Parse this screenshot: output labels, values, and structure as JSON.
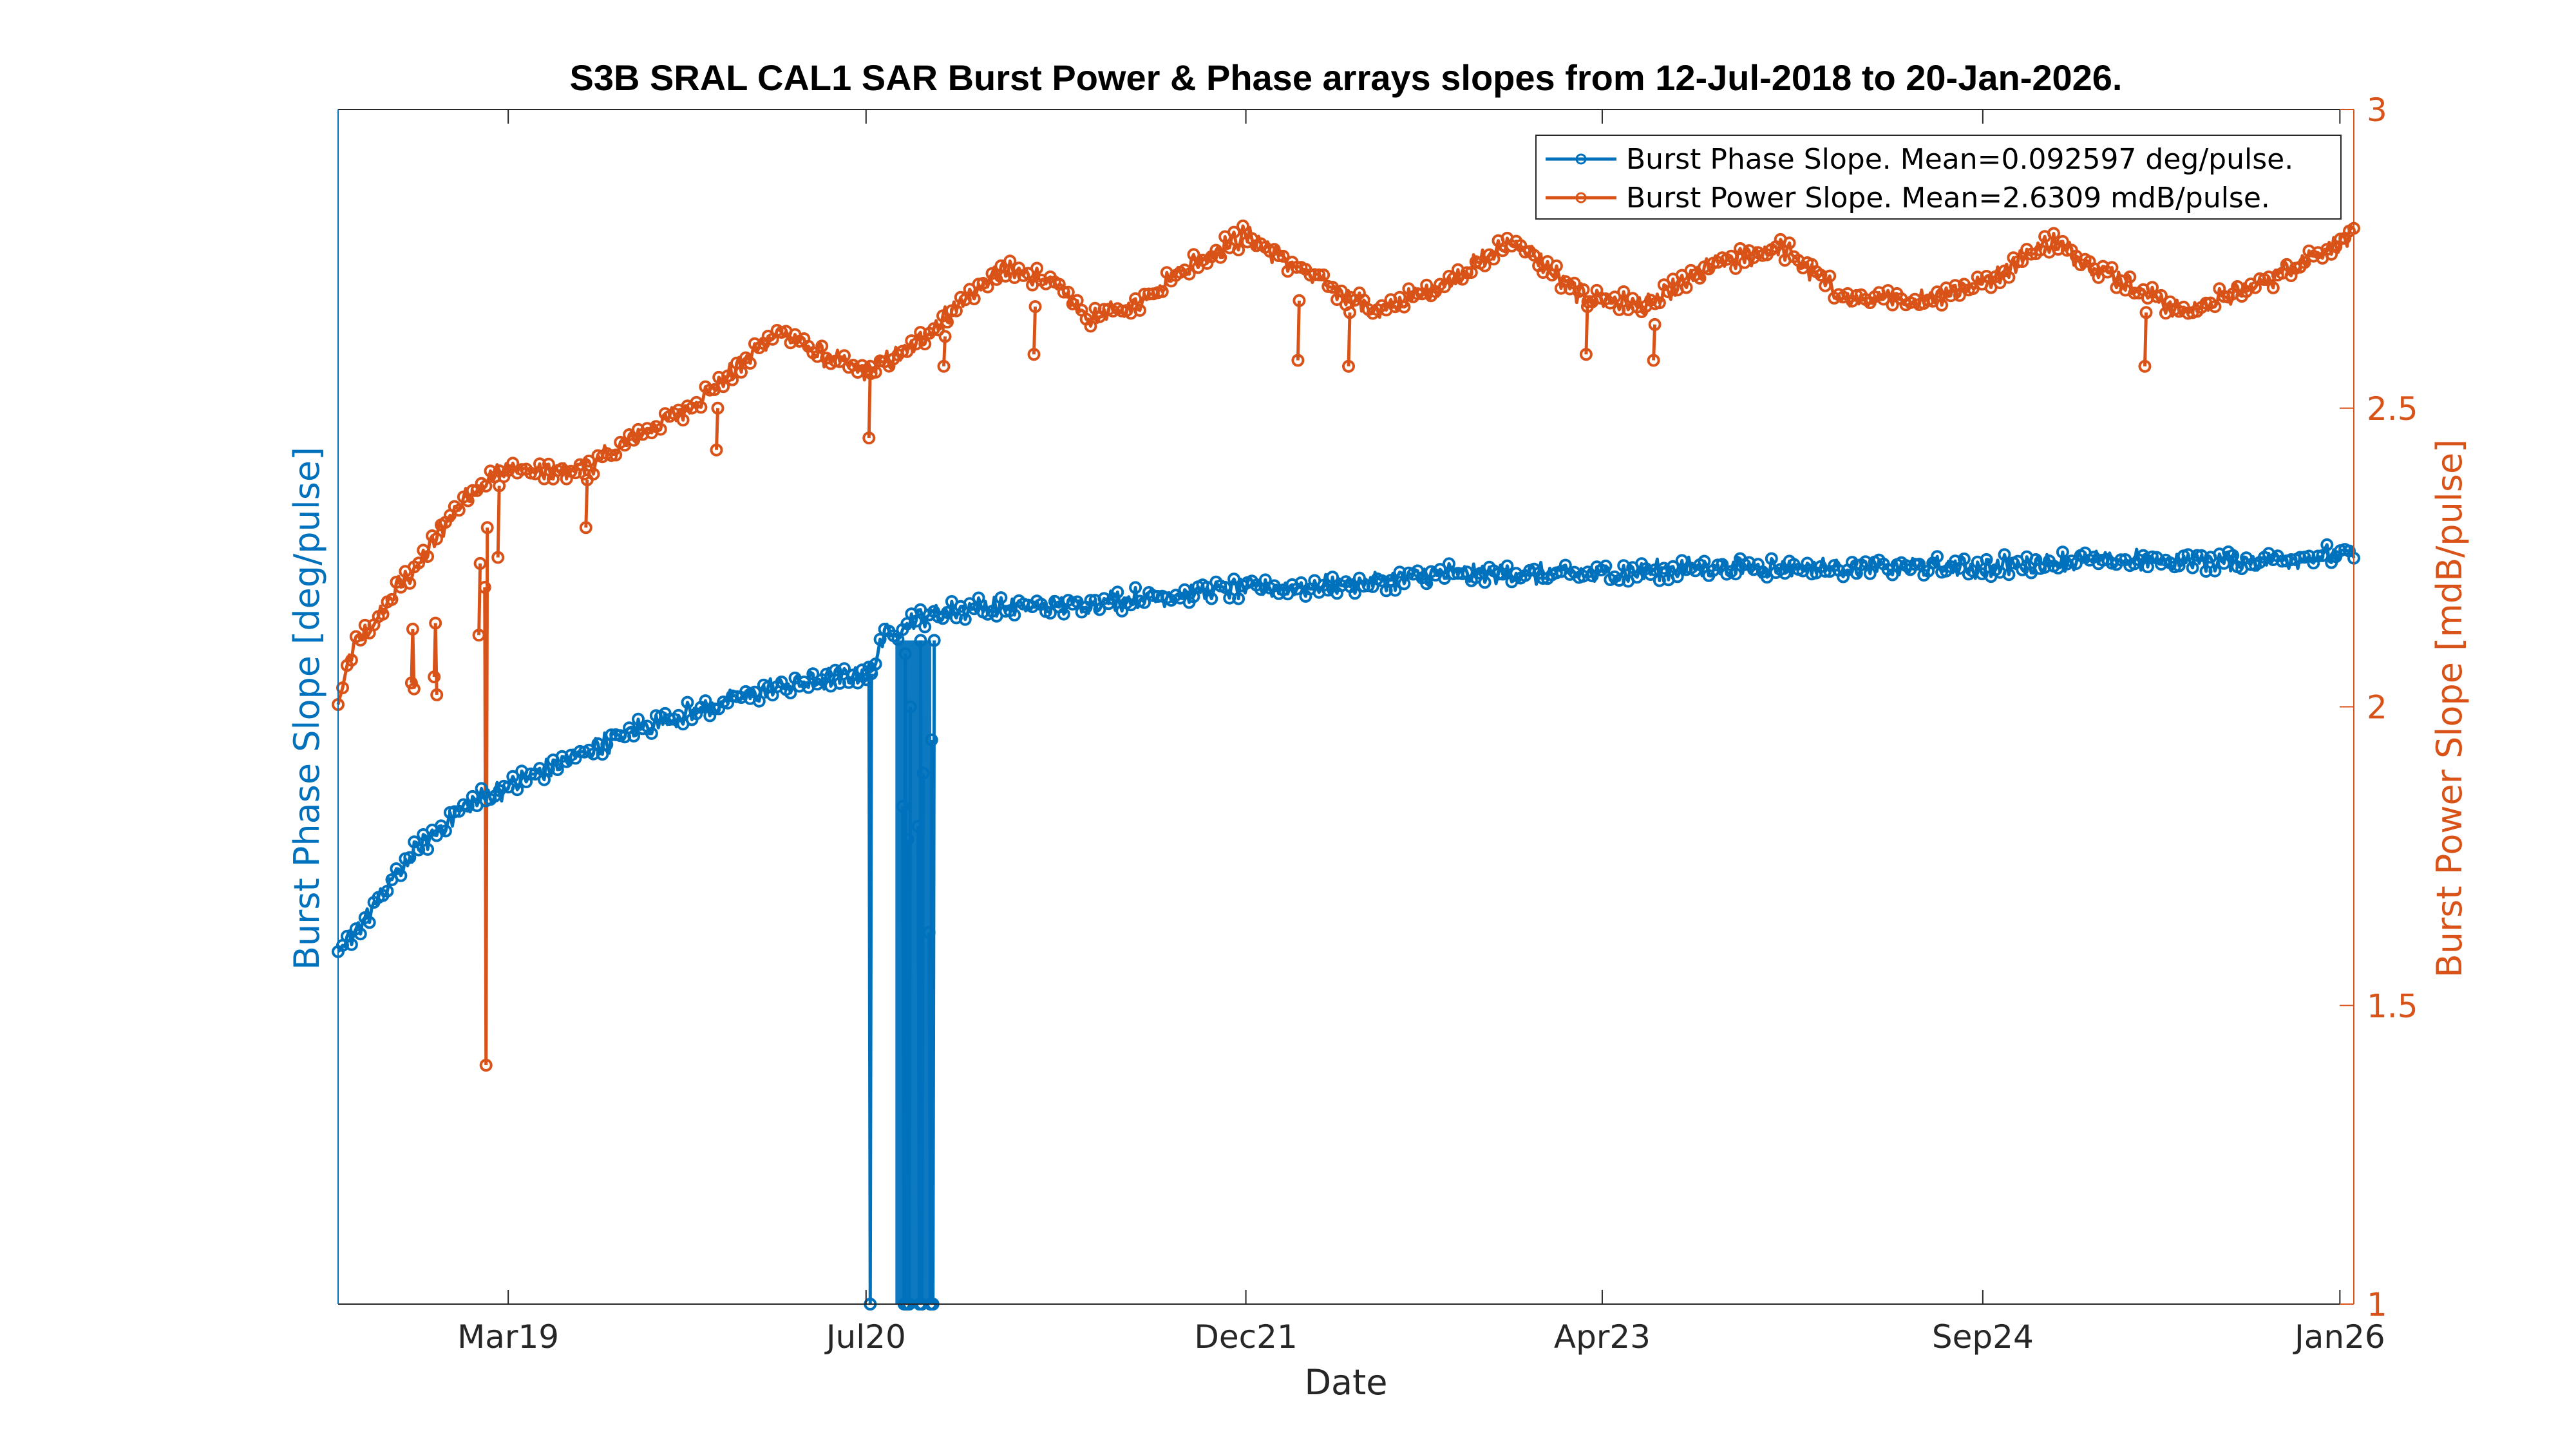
{
  "colors": {
    "phase": "#0072BD",
    "power": "#D95319",
    "axis": "#262626",
    "frame_left": "#0072BD",
    "frame_right": "#D95319"
  },
  "chart_data": {
    "type": "line",
    "title": "S3B SRAL CAL1 SAR Burst Power & Phase arrays slopes from 12-Jul-2018 to 20-Jan-2026.",
    "xlabel": "Date",
    "ylabel_left": "Burst Phase Slope [deg/pulse]",
    "ylabel_right": "Burst Power Slope [mdB/pulse]",
    "xlim": [
      "2018-07-12",
      "2026-01-20"
    ],
    "x_ticks": [
      {
        "date": "2019-03-01",
        "label": "Mar19"
      },
      {
        "date": "2020-07-01",
        "label": "Jul20"
      },
      {
        "date": "2021-12-01",
        "label": "Dec21"
      },
      {
        "date": "2023-04-01",
        "label": "Apr23"
      },
      {
        "date": "2024-09-01",
        "label": "Sep24"
      },
      {
        "date": "2026-01-01",
        "label": "Jan26"
      }
    ],
    "ylim_right": [
      1,
      3
    ],
    "y_ticks_right": [
      "1",
      "1.5",
      "2",
      "2.5",
      "3"
    ],
    "left_axis_tick_labels_visible": false,
    "ylim_left": [
      1.0,
      2.8
    ],
    "grid": false,
    "legend_position": "top-right",
    "series": [
      {
        "name": "Burst Phase Slope. Mean=0.092597 deg/pulse.",
        "axis": "left",
        "marker": "circle",
        "x": [
          "2018-07-12",
          "2018-08-01",
          "2018-09-01",
          "2018-10-01",
          "2018-11-01",
          "2018-12-01",
          "2019-01-01",
          "2019-03-01",
          "2019-05-01",
          "2019-07-01",
          "2019-09-01",
          "2019-11-01",
          "2020-01-01",
          "2020-03-01",
          "2020-05-01",
          "2020-06-30",
          "2020-07-10",
          "2020-07-20",
          "2020-08-01",
          "2020-08-20",
          "2020-09-01",
          "2020-10-01",
          "2020-12-01",
          "2021-03-01",
          "2021-06-01",
          "2021-09-01",
          "2021-12-01",
          "2022-03-01",
          "2022-06-01",
          "2022-09-01",
          "2022-12-01",
          "2023-04-01",
          "2023-08-01",
          "2023-12-01",
          "2024-04-01",
          "2024-09-01",
          "2025-01-01",
          "2025-05-01",
          "2025-09-01",
          "2026-01-20"
        ],
        "values": [
          1.52,
          1.56,
          1.6,
          1.65,
          1.69,
          1.72,
          1.75,
          1.78,
          1.81,
          1.84,
          1.87,
          1.89,
          1.91,
          1.93,
          1.94,
          1.95,
          1.95,
          2.0,
          2.01,
          2.02,
          2.03,
          2.04,
          2.05,
          2.05,
          2.06,
          2.07,
          2.08,
          2.08,
          2.09,
          2.1,
          2.1,
          2.1,
          2.11,
          2.11,
          2.11,
          2.11,
          2.12,
          2.12,
          2.12,
          2.13
        ],
        "outliers": [
          {
            "x": "2020-07-05",
            "values": [
              1.96,
              1.0,
              1.95
            ]
          },
          {
            "x": "2020-08-20",
            "values": [
              1.75,
              1.0,
              1.98,
              1.0,
              1.7,
              1.0,
              1.9
            ]
          },
          {
            "x": "2020-09-10",
            "values": [
              1.72,
              1.0,
              2.0,
              1.0,
              1.8
            ]
          },
          {
            "x": "2020-09-25",
            "values": [
              1.56,
              1.0,
              1.85,
              1.0,
              2.0
            ]
          }
        ]
      },
      {
        "name": "Burst Power Slope. Mean=2.6309 mdB/pulse.",
        "axis": "right",
        "marker": "circle",
        "x": [
          "2018-07-12",
          "2018-08-01",
          "2018-09-01",
          "2018-10-01",
          "2018-11-01",
          "2018-12-01",
          "2019-01-01",
          "2019-02-01",
          "2019-03-01",
          "2019-05-01",
          "2019-07-01",
          "2019-09-01",
          "2019-11-01",
          "2020-01-01",
          "2020-03-01",
          "2020-05-01",
          "2020-07-01",
          "2020-09-01",
          "2020-11-01",
          "2021-01-01",
          "2021-03-01",
          "2021-05-01",
          "2021-07-01",
          "2021-09-01",
          "2021-12-01",
          "2022-03-01",
          "2022-06-01",
          "2022-09-01",
          "2022-12-01",
          "2023-03-01",
          "2023-06-01",
          "2023-09-01",
          "2023-12-01",
          "2024-03-01",
          "2024-06-01",
          "2024-09-01",
          "2024-12-01",
          "2025-03-01",
          "2025-06-01",
          "2025-09-01",
          "2025-12-01",
          "2026-01-20"
        ],
        "values": [
          2.0,
          2.1,
          2.14,
          2.2,
          2.24,
          2.3,
          2.35,
          2.38,
          2.4,
          2.39,
          2.41,
          2.46,
          2.5,
          2.56,
          2.63,
          2.59,
          2.56,
          2.6,
          2.67,
          2.73,
          2.72,
          2.65,
          2.67,
          2.73,
          2.79,
          2.72,
          2.66,
          2.71,
          2.78,
          2.69,
          2.67,
          2.74,
          2.77,
          2.68,
          2.68,
          2.71,
          2.78,
          2.72,
          2.66,
          2.7,
          2.76,
          2.79
        ],
        "outliers": [
          {
            "x": "2018-10-20",
            "values": [
              2.04,
              2.13,
              2.03
            ]
          },
          {
            "x": "2018-11-20",
            "values": [
              2.05,
              2.14,
              2.02
            ]
          },
          {
            "x": "2019-01-20",
            "values": [
              2.12,
              2.24
            ]
          },
          {
            "x": "2019-01-28",
            "values": [
              2.2,
              1.4,
              2.3
            ]
          },
          {
            "x": "2019-02-15",
            "values": [
              2.25,
              2.37
            ]
          },
          {
            "x": "2019-06-15",
            "values": [
              2.3,
              2.38
            ]
          },
          {
            "x": "2019-12-10",
            "values": [
              2.43,
              2.5
            ]
          },
          {
            "x": "2020-07-05",
            "values": [
              2.45,
              2.57
            ]
          },
          {
            "x": "2020-10-15",
            "values": [
              2.57,
              2.62
            ]
          },
          {
            "x": "2021-02-15",
            "values": [
              2.59,
              2.67
            ]
          },
          {
            "x": "2022-02-10",
            "values": [
              2.58,
              2.68
            ]
          },
          {
            "x": "2022-04-20",
            "values": [
              2.57,
              2.66
            ]
          },
          {
            "x": "2023-03-10",
            "values": [
              2.59,
              2.67
            ]
          },
          {
            "x": "2023-06-10",
            "values": [
              2.58,
              2.64
            ]
          },
          {
            "x": "2025-04-10",
            "values": [
              2.57,
              2.66
            ]
          }
        ]
      }
    ]
  }
}
